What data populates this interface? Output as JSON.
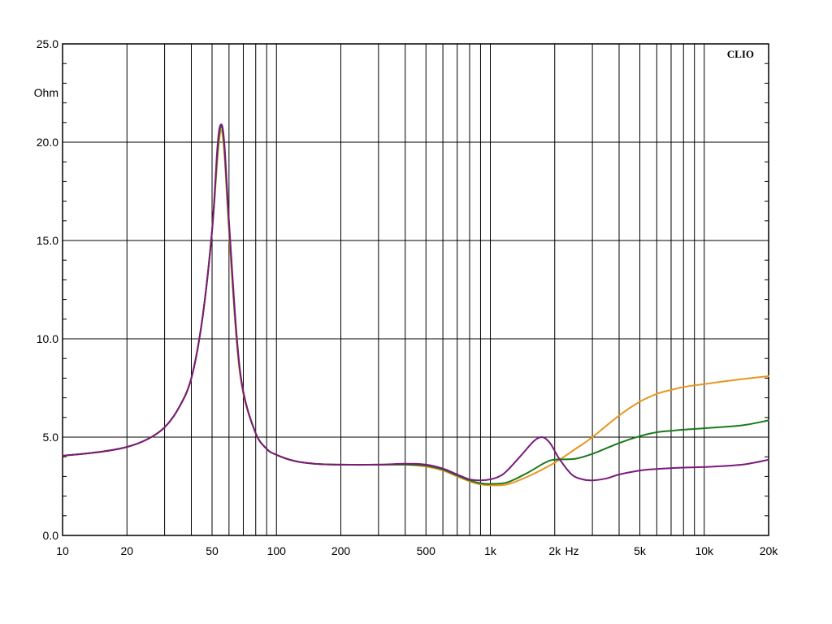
{
  "chart_data": {
    "type": "line",
    "brand": "CLIO",
    "ylabel": "Ohm",
    "xlabel": "Hz",
    "x_scale": "log",
    "xlim": [
      10,
      20000
    ],
    "ylim": [
      0,
      25
    ],
    "grid": true,
    "x_ticks": [
      {
        "value": 10,
        "label": "10"
      },
      {
        "value": 20,
        "label": "20"
      },
      {
        "value": 50,
        "label": "50"
      },
      {
        "value": 100,
        "label": "100"
      },
      {
        "value": 200,
        "label": "200"
      },
      {
        "value": 500,
        "label": "500"
      },
      {
        "value": 1000,
        "label": "1k"
      },
      {
        "value": 2000,
        "label": "2k"
      },
      {
        "value": 5000,
        "label": "5k"
      },
      {
        "value": 10000,
        "label": "10k"
      },
      {
        "value": 20000,
        "label": "20k"
      }
    ],
    "y_ticks": [
      {
        "value": 0,
        "label": "0.0"
      },
      {
        "value": 5,
        "label": "5.0"
      },
      {
        "value": 10,
        "label": "10.0"
      },
      {
        "value": 15,
        "label": "15.0"
      },
      {
        "value": 20,
        "label": "20.0"
      },
      {
        "value": 25,
        "label": "25.0"
      }
    ],
    "series": [
      {
        "color": "#E8961E",
        "points": [
          [
            10,
            4.05
          ],
          [
            15,
            4.25
          ],
          [
            20,
            4.5
          ],
          [
            25,
            4.9
          ],
          [
            30,
            5.5
          ],
          [
            35,
            6.5
          ],
          [
            40,
            8.0
          ],
          [
            45,
            11.0
          ],
          [
            50,
            15.5
          ],
          [
            53,
            19.2
          ],
          [
            55,
            20.6
          ],
          [
            57,
            19.5
          ],
          [
            60,
            15.5
          ],
          [
            65,
            10.0
          ],
          [
            70,
            7.2
          ],
          [
            80,
            5.2
          ],
          [
            90,
            4.4
          ],
          [
            100,
            4.1
          ],
          [
            120,
            3.8
          ],
          [
            150,
            3.65
          ],
          [
            200,
            3.6
          ],
          [
            300,
            3.6
          ],
          [
            400,
            3.6
          ],
          [
            500,
            3.5
          ],
          [
            600,
            3.3
          ],
          [
            700,
            3.0
          ],
          [
            800,
            2.75
          ],
          [
            900,
            2.6
          ],
          [
            1000,
            2.55
          ],
          [
            1200,
            2.6
          ],
          [
            1500,
            3.0
          ],
          [
            2000,
            3.7
          ],
          [
            2500,
            4.4
          ],
          [
            3000,
            5.0
          ],
          [
            4000,
            6.1
          ],
          [
            5000,
            6.8
          ],
          [
            6000,
            7.2
          ],
          [
            7000,
            7.4
          ],
          [
            8000,
            7.55
          ],
          [
            10000,
            7.7
          ],
          [
            15000,
            7.95
          ],
          [
            20000,
            8.1
          ]
        ]
      },
      {
        "color": "#1A7A1A",
        "points": [
          [
            10,
            4.05
          ],
          [
            15,
            4.25
          ],
          [
            20,
            4.5
          ],
          [
            25,
            4.9
          ],
          [
            30,
            5.5
          ],
          [
            35,
            6.5
          ],
          [
            40,
            8.0
          ],
          [
            45,
            11.0
          ],
          [
            50,
            15.5
          ],
          [
            53,
            19.5
          ],
          [
            55,
            20.8
          ],
          [
            57,
            19.8
          ],
          [
            60,
            15.8
          ],
          [
            65,
            10.2
          ],
          [
            70,
            7.3
          ],
          [
            80,
            5.2
          ],
          [
            90,
            4.4
          ],
          [
            100,
            4.1
          ],
          [
            120,
            3.8
          ],
          [
            150,
            3.65
          ],
          [
            200,
            3.6
          ],
          [
            300,
            3.6
          ],
          [
            400,
            3.6
          ],
          [
            500,
            3.55
          ],
          [
            600,
            3.35
          ],
          [
            700,
            3.05
          ],
          [
            800,
            2.8
          ],
          [
            900,
            2.65
          ],
          [
            1000,
            2.62
          ],
          [
            1200,
            2.7
          ],
          [
            1500,
            3.2
          ],
          [
            1800,
            3.7
          ],
          [
            2000,
            3.85
          ],
          [
            2500,
            3.9
          ],
          [
            3000,
            4.15
          ],
          [
            4000,
            4.7
          ],
          [
            5000,
            5.05
          ],
          [
            6000,
            5.25
          ],
          [
            7000,
            5.32
          ],
          [
            8000,
            5.38
          ],
          [
            10000,
            5.45
          ],
          [
            15000,
            5.6
          ],
          [
            20000,
            5.85
          ]
        ]
      },
      {
        "color": "#7A1A7A",
        "points": [
          [
            10,
            4.05
          ],
          [
            15,
            4.25
          ],
          [
            20,
            4.5
          ],
          [
            25,
            4.9
          ],
          [
            30,
            5.5
          ],
          [
            35,
            6.5
          ],
          [
            40,
            8.0
          ],
          [
            45,
            11.0
          ],
          [
            50,
            15.5
          ],
          [
            53,
            19.8
          ],
          [
            55,
            20.9
          ],
          [
            57,
            20.0
          ],
          [
            60,
            16.0
          ],
          [
            65,
            10.3
          ],
          [
            70,
            7.3
          ],
          [
            80,
            5.2
          ],
          [
            90,
            4.4
          ],
          [
            100,
            4.1
          ],
          [
            120,
            3.8
          ],
          [
            150,
            3.65
          ],
          [
            200,
            3.6
          ],
          [
            300,
            3.6
          ],
          [
            400,
            3.65
          ],
          [
            500,
            3.6
          ],
          [
            600,
            3.4
          ],
          [
            700,
            3.1
          ],
          [
            800,
            2.85
          ],
          [
            900,
            2.8
          ],
          [
            1000,
            2.85
          ],
          [
            1100,
            3.0
          ],
          [
            1200,
            3.3
          ],
          [
            1400,
            4.1
          ],
          [
            1600,
            4.8
          ],
          [
            1750,
            5.0
          ],
          [
            1900,
            4.7
          ],
          [
            2100,
            3.9
          ],
          [
            2400,
            3.1
          ],
          [
            2700,
            2.85
          ],
          [
            3000,
            2.8
          ],
          [
            3500,
            2.9
          ],
          [
            4000,
            3.1
          ],
          [
            5000,
            3.3
          ],
          [
            6000,
            3.38
          ],
          [
            8000,
            3.45
          ],
          [
            10000,
            3.48
          ],
          [
            15000,
            3.6
          ],
          [
            20000,
            3.85
          ]
        ]
      }
    ]
  }
}
